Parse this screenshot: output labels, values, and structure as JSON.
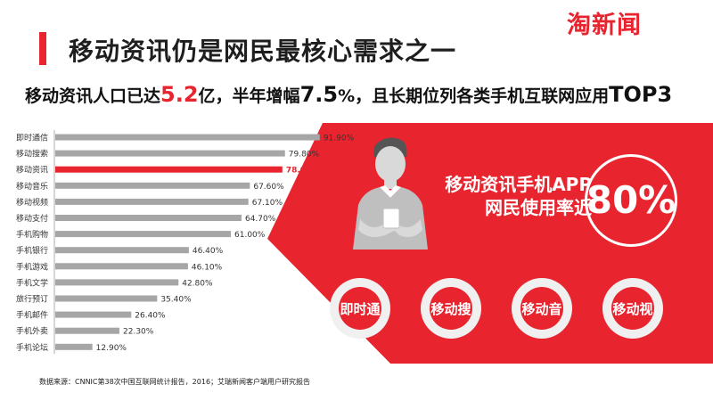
{
  "header": {
    "title": "移动资讯仍是网民最核心需求之一",
    "logo_text": "淘新闻"
  },
  "subtitle": {
    "part1": "移动资讯人口已达",
    "value1": "5.2",
    "unit1": "亿",
    "part2": "，半年增幅",
    "value2": "7.5",
    "part3": "%，且长期位列各类手机互联网应用",
    "value3": "TOP3"
  },
  "callout": {
    "line1": "移动资讯手机APP",
    "line2": "网民使用率近",
    "percent": "80%"
  },
  "apps": [
    {
      "label": "即时通"
    },
    {
      "label": "移动搜"
    },
    {
      "label": "移动音"
    },
    {
      "label": "移动视"
    }
  ],
  "colors": {
    "accent": "#e8242f",
    "bar": "#a6a6a6",
    "highlight_bar": "#e8242f"
  },
  "source_note": "数据来源：CNNIC第38次中国互联网统计报告，2016；艾瑞新闻客户端用户研究报告",
  "chart_data": {
    "type": "bar",
    "orientation": "horizontal",
    "categories": [
      "即时通信",
      "移动搜索",
      "移动资讯",
      "移动音乐",
      "移动视频",
      "移动支付",
      "手机购物",
      "手机银行",
      "手机游戏",
      "手机文学",
      "旅行预订",
      "手机邮件",
      "手机外卖",
      "手机论坛"
    ],
    "values": [
      91.9,
      79.8,
      78.9,
      67.6,
      67.1,
      64.7,
      61.0,
      46.4,
      46.1,
      42.8,
      35.4,
      26.4,
      22.3,
      12.9
    ],
    "labels": [
      "91.90%",
      "79.80%",
      "78.90%",
      "67.60%",
      "67.10%",
      "64.70%",
      "61.00%",
      "46.40%",
      "46.10%",
      "42.80%",
      "35.40%",
      "26.40%",
      "22.30%",
      "12.90%"
    ],
    "highlight_index": 2,
    "xlim": [
      0,
      100
    ],
    "title": "",
    "xlabel": "",
    "ylabel": ""
  }
}
